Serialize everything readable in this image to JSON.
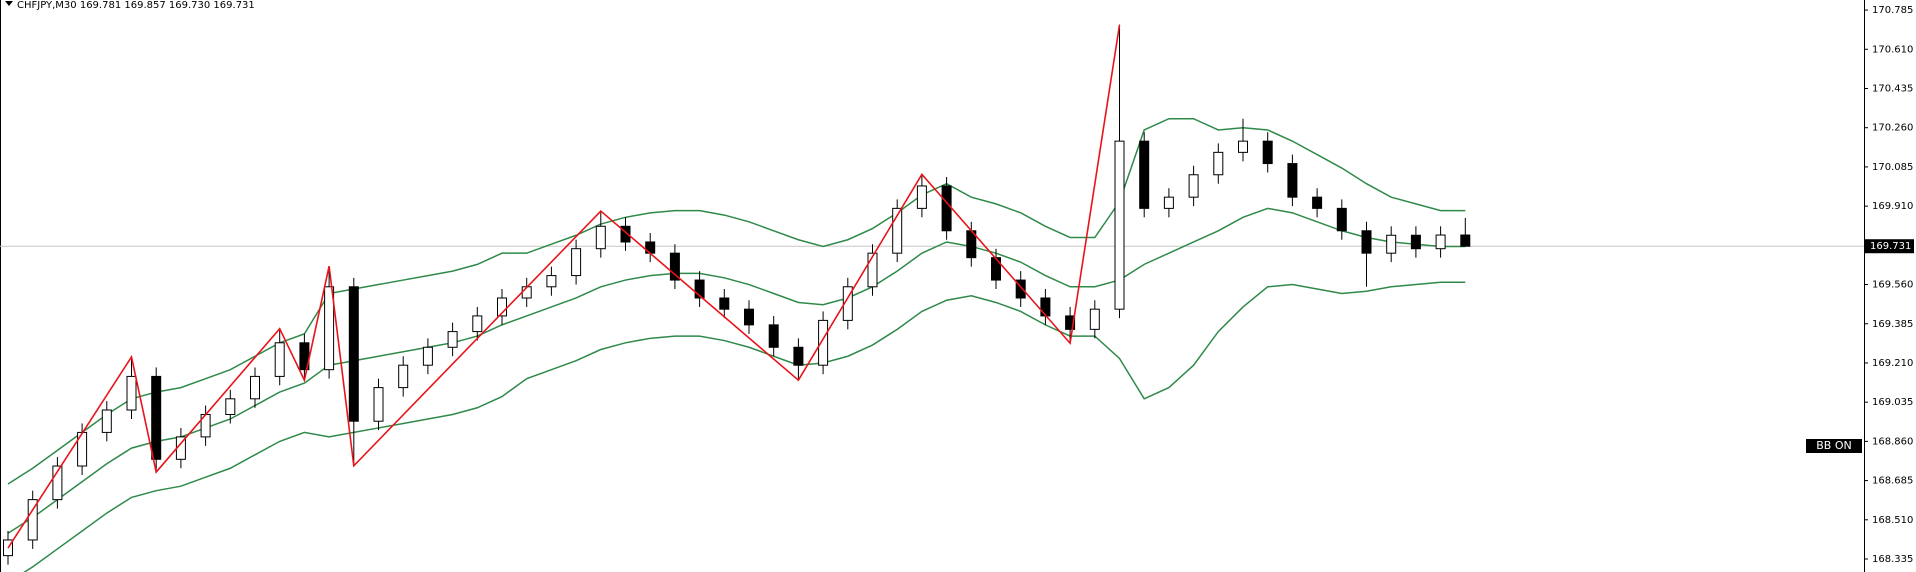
{
  "chart_data": {
    "type": "candlestick",
    "title": "CHFJPY,M30  169.781 169.857 169.730 169.731",
    "indicator_label": "BB ON",
    "last_price": 169.731,
    "ylim": [
      168.277,
      170.83
    ],
    "yticks": [
      168.335,
      {
        "value": 168.51,
        "label": "168.510"
      },
      168.685,
      {
        "value": 168.86,
        "label": "168.860"
      },
      169.035,
      {
        "value": 169.21,
        "label": "169.210"
      },
      169.385,
      {
        "value": 169.56,
        "label": "169.560"
      },
      {
        "value": 169.91,
        "label": "169.910"
      },
      170.085,
      {
        "value": 170.26,
        "label": "170.260"
      },
      170.435,
      {
        "value": 170.61,
        "label": "170.610"
      },
      170.785
    ],
    "bull_color": "#ffffff",
    "bear_color": "#000000",
    "open": [
      168.35,
      168.42,
      168.6,
      168.75,
      168.9,
      169.0,
      169.15,
      168.78,
      168.88,
      168.98,
      169.05,
      169.15,
      169.3,
      169.18,
      169.55,
      168.95,
      169.1,
      169.2,
      169.28,
      169.35,
      169.42,
      169.5,
      169.55,
      169.6,
      169.72,
      169.82,
      169.75,
      169.7,
      169.58,
      169.5,
      169.45,
      169.38,
      169.28,
      169.2,
      169.4,
      169.55,
      169.7,
      169.9,
      170.0,
      169.8,
      169.68,
      169.58,
      169.5,
      169.42,
      169.36,
      169.45,
      170.2,
      169.9,
      169.95,
      170.05,
      170.15,
      170.2,
      170.1,
      169.95,
      169.9,
      169.8,
      169.7,
      169.78,
      169.72,
      169.781
    ],
    "high": [
      168.46,
      168.64,
      168.79,
      168.94,
      169.04,
      169.24,
      169.19,
      168.92,
      169.02,
      169.09,
      169.19,
      169.36,
      169.34,
      169.64,
      169.59,
      169.14,
      169.24,
      169.32,
      169.39,
      169.46,
      169.54,
      169.59,
      169.64,
      169.76,
      169.89,
      169.86,
      169.79,
      169.74,
      169.62,
      169.54,
      169.49,
      169.42,
      169.32,
      169.44,
      169.59,
      169.74,
      169.94,
      170.05,
      170.04,
      169.84,
      169.72,
      169.62,
      169.54,
      169.46,
      169.49,
      170.72,
      170.24,
      169.99,
      170.09,
      170.19,
      170.3,
      170.24,
      170.14,
      169.99,
      169.94,
      169.84,
      169.82,
      169.82,
      169.82,
      169.857
    ],
    "low": [
      168.31,
      168.38,
      168.56,
      168.71,
      168.86,
      168.96,
      168.72,
      168.74,
      168.84,
      168.94,
      169.01,
      169.11,
      169.13,
      169.14,
      168.75,
      168.91,
      169.06,
      169.16,
      169.24,
      169.31,
      169.38,
      169.46,
      169.51,
      169.56,
      169.68,
      169.71,
      169.66,
      169.54,
      169.46,
      169.41,
      169.34,
      169.24,
      169.13,
      169.16,
      169.36,
      169.51,
      169.66,
      169.86,
      169.76,
      169.64,
      169.54,
      169.46,
      169.38,
      169.3,
      169.32,
      169.41,
      169.86,
      169.86,
      169.91,
      170.01,
      170.11,
      170.06,
      169.91,
      169.86,
      169.76,
      169.55,
      169.66,
      169.68,
      169.68,
      169.73
    ],
    "close": [
      168.42,
      168.6,
      168.75,
      168.9,
      169.0,
      169.15,
      168.78,
      168.88,
      168.98,
      169.05,
      169.15,
      169.3,
      169.18,
      169.55,
      168.95,
      169.1,
      169.2,
      169.28,
      169.35,
      169.42,
      169.5,
      169.55,
      169.6,
      169.72,
      169.82,
      169.75,
      169.7,
      169.58,
      169.5,
      169.45,
      169.38,
      169.28,
      169.2,
      169.4,
      169.55,
      169.7,
      169.9,
      170.0,
      169.8,
      169.68,
      169.58,
      169.5,
      169.42,
      169.36,
      169.45,
      170.2,
      169.9,
      169.95,
      170.05,
      170.15,
      170.2,
      170.1,
      169.95,
      169.9,
      169.8,
      169.7,
      169.78,
      169.72,
      169.781,
      169.731
    ],
    "bollinger": {
      "color": "#2f8a4a",
      "upper": [
        168.67,
        168.74,
        168.82,
        168.9,
        168.98,
        169.05,
        169.08,
        169.1,
        169.14,
        169.18,
        169.24,
        169.3,
        169.34,
        169.52,
        169.54,
        169.56,
        169.58,
        169.6,
        169.62,
        169.65,
        169.7,
        169.7,
        169.74,
        169.78,
        169.83,
        169.86,
        169.88,
        169.89,
        169.89,
        169.87,
        169.84,
        169.8,
        169.76,
        169.73,
        169.76,
        169.81,
        169.88,
        169.96,
        170.01,
        169.95,
        169.92,
        169.88,
        169.82,
        169.77,
        169.77,
        169.93,
        170.25,
        170.3,
        170.3,
        170.25,
        170.26,
        170.25,
        170.2,
        170.14,
        170.08,
        170.01,
        169.95,
        169.92,
        169.89,
        169.89
      ],
      "middle": [
        168.45,
        168.52,
        168.6,
        168.68,
        168.76,
        168.83,
        168.86,
        168.88,
        168.92,
        168.96,
        169.02,
        169.08,
        169.12,
        169.2,
        169.22,
        169.24,
        169.26,
        169.28,
        169.3,
        169.33,
        169.38,
        169.42,
        169.46,
        169.5,
        169.55,
        169.58,
        169.6,
        169.61,
        169.61,
        169.59,
        169.56,
        169.52,
        169.48,
        169.47,
        169.5,
        169.55,
        169.62,
        169.7,
        169.75,
        169.73,
        169.7,
        169.66,
        169.6,
        169.55,
        169.55,
        169.58,
        169.65,
        169.7,
        169.75,
        169.8,
        169.86,
        169.9,
        169.88,
        169.84,
        169.8,
        169.77,
        169.75,
        169.74,
        169.73,
        169.73
      ],
      "lower": [
        168.23,
        168.3,
        168.38,
        168.46,
        168.54,
        168.61,
        168.64,
        168.66,
        168.7,
        168.74,
        168.8,
        168.86,
        168.9,
        168.88,
        168.9,
        168.92,
        168.94,
        168.96,
        168.98,
        169.01,
        169.06,
        169.14,
        169.18,
        169.22,
        169.27,
        169.3,
        169.32,
        169.33,
        169.33,
        169.31,
        169.28,
        169.24,
        169.2,
        169.21,
        169.24,
        169.29,
        169.36,
        169.44,
        169.49,
        169.51,
        169.48,
        169.44,
        169.38,
        169.33,
        169.33,
        169.23,
        169.05,
        169.1,
        169.2,
        169.35,
        169.46,
        169.55,
        169.56,
        169.54,
        169.52,
        169.53,
        169.55,
        169.56,
        169.57,
        169.57
      ]
    },
    "zigzag": {
      "color": "#e8141a",
      "x": [
        0,
        5,
        6,
        11,
        12,
        13,
        14,
        24,
        32,
        37,
        43,
        45
      ],
      "y": [
        168.384,
        169.237,
        168.723,
        169.363,
        169.133,
        169.642,
        168.751,
        169.888,
        169.133,
        170.052,
        169.298,
        170.719
      ]
    }
  }
}
